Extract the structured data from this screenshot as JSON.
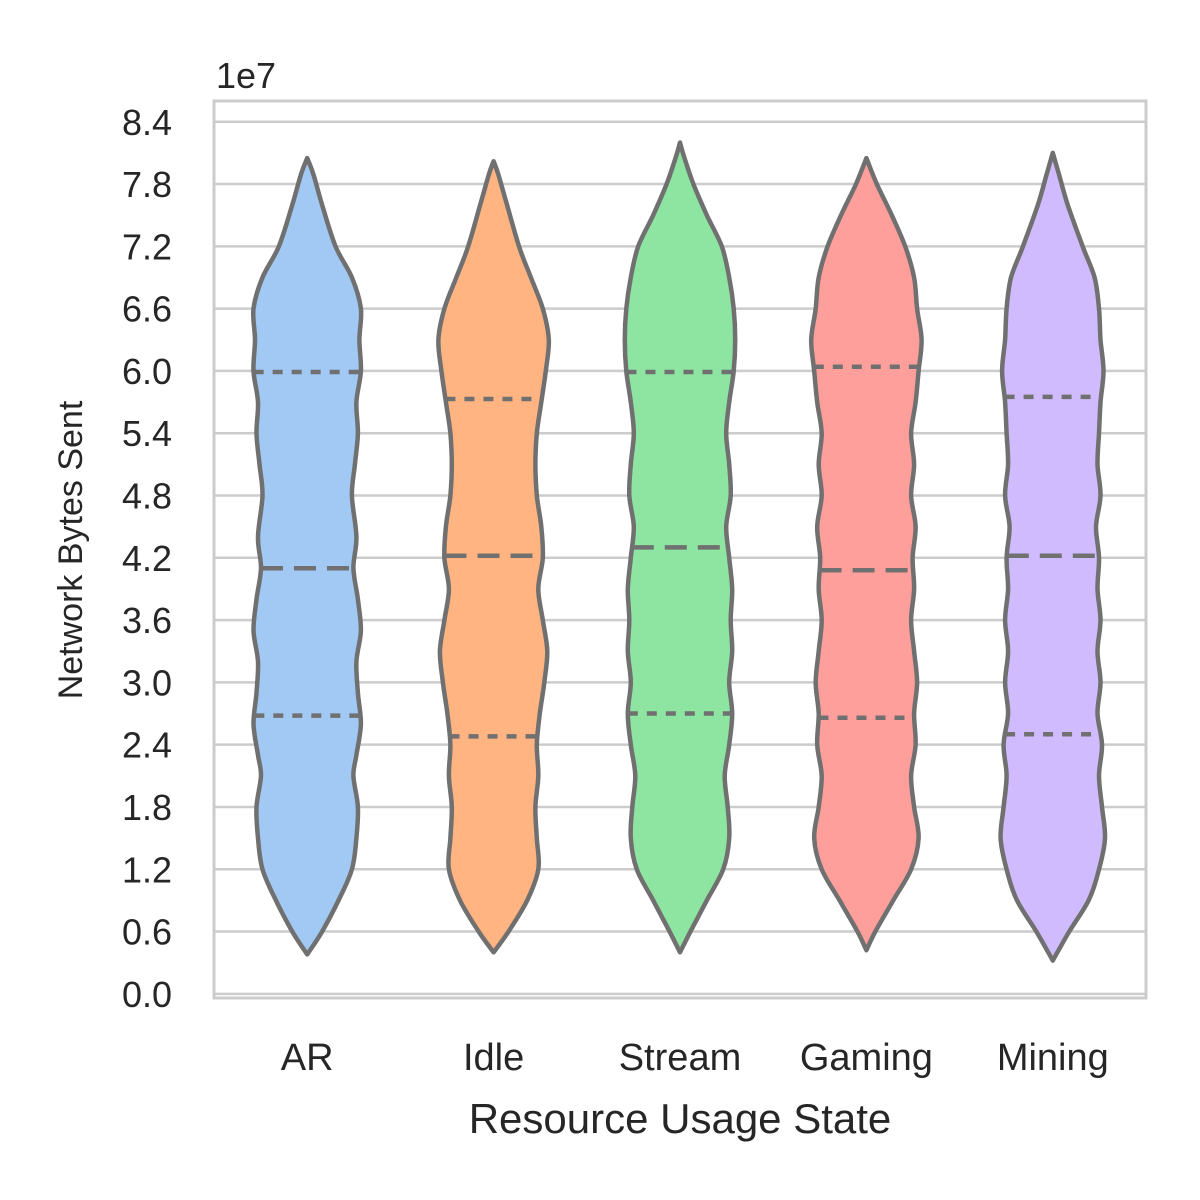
{
  "chart_data": {
    "type": "violin",
    "xlabel": "Resource Usage State",
    "ylabel": "Network Bytes Sent",
    "offset_label": "1e7",
    "y_scale_factor": 10000000,
    "ylim": [
      -0.04,
      8.6
    ],
    "yticks": [
      0.0,
      0.6,
      1.2,
      1.8,
      2.4,
      3.0,
      3.6,
      4.2,
      4.8,
      5.4,
      6.0,
      6.6,
      7.2,
      7.8,
      8.4
    ],
    "ytick_labels": [
      "0.0",
      "0.6",
      "1.2",
      "1.8",
      "2.4",
      "3.0",
      "3.6",
      "4.2",
      "4.8",
      "5.4",
      "6.0",
      "6.6",
      "7.2",
      "7.8",
      "8.4"
    ],
    "grid": "horizontal",
    "categories": [
      "AR",
      "Idle",
      "Stream",
      "Gaming",
      "Mining"
    ],
    "series": [
      {
        "category": "AR",
        "color": "#a1c9f4",
        "y_min": 0.38,
        "y_max": 8.05,
        "quartiles": [
          2.68,
          4.1,
          5.99
        ],
        "profile": [
          [
            0.38,
            0.0
          ],
          [
            0.6,
            0.2
          ],
          [
            0.9,
            0.42
          ],
          [
            1.2,
            0.6
          ],
          [
            1.5,
            0.66
          ],
          [
            1.8,
            0.68
          ],
          [
            2.1,
            0.62
          ],
          [
            2.3,
            0.66
          ],
          [
            2.6,
            0.72
          ],
          [
            2.9,
            0.68
          ],
          [
            3.2,
            0.66
          ],
          [
            3.5,
            0.72
          ],
          [
            3.8,
            0.68
          ],
          [
            4.1,
            0.62
          ],
          [
            4.4,
            0.66
          ],
          [
            4.8,
            0.6
          ],
          [
            5.1,
            0.64
          ],
          [
            5.4,
            0.68
          ],
          [
            5.7,
            0.66
          ],
          [
            6.0,
            0.72
          ],
          [
            6.3,
            0.7
          ],
          [
            6.6,
            0.72
          ],
          [
            6.9,
            0.6
          ],
          [
            7.2,
            0.38
          ],
          [
            7.6,
            0.2
          ],
          [
            7.9,
            0.08
          ],
          [
            8.05,
            0.0
          ]
        ]
      },
      {
        "category": "Idle",
        "color": "#ffb482",
        "y_min": 0.4,
        "y_max": 8.02,
        "quartiles": [
          2.48,
          4.22,
          5.73
        ],
        "profile": [
          [
            0.4,
            0.0
          ],
          [
            0.6,
            0.2
          ],
          [
            0.9,
            0.45
          ],
          [
            1.2,
            0.6
          ],
          [
            1.5,
            0.58
          ],
          [
            1.8,
            0.56
          ],
          [
            2.1,
            0.6
          ],
          [
            2.4,
            0.58
          ],
          [
            2.7,
            0.62
          ],
          [
            3.0,
            0.68
          ],
          [
            3.3,
            0.72
          ],
          [
            3.6,
            0.66
          ],
          [
            3.9,
            0.6
          ],
          [
            4.2,
            0.66
          ],
          [
            4.5,
            0.64
          ],
          [
            4.8,
            0.58
          ],
          [
            5.1,
            0.56
          ],
          [
            5.4,
            0.58
          ],
          [
            5.7,
            0.64
          ],
          [
            6.0,
            0.7
          ],
          [
            6.3,
            0.74
          ],
          [
            6.6,
            0.66
          ],
          [
            6.9,
            0.5
          ],
          [
            7.2,
            0.34
          ],
          [
            7.6,
            0.18
          ],
          [
            7.9,
            0.06
          ],
          [
            8.02,
            0.0
          ]
        ]
      },
      {
        "category": "Stream",
        "color": "#8de5a1",
        "y_min": 0.4,
        "y_max": 8.2,
        "quartiles": [
          2.7,
          4.3,
          5.99
        ],
        "profile": [
          [
            0.4,
            0.0
          ],
          [
            0.6,
            0.14
          ],
          [
            0.9,
            0.36
          ],
          [
            1.2,
            0.58
          ],
          [
            1.5,
            0.66
          ],
          [
            1.8,
            0.64
          ],
          [
            2.1,
            0.6
          ],
          [
            2.4,
            0.66
          ],
          [
            2.7,
            0.7
          ],
          [
            3.0,
            0.66
          ],
          [
            3.3,
            0.7
          ],
          [
            3.6,
            0.68
          ],
          [
            3.9,
            0.7
          ],
          [
            4.2,
            0.66
          ],
          [
            4.5,
            0.62
          ],
          [
            4.8,
            0.68
          ],
          [
            5.1,
            0.66
          ],
          [
            5.4,
            0.62
          ],
          [
            5.7,
            0.66
          ],
          [
            6.0,
            0.72
          ],
          [
            6.3,
            0.74
          ],
          [
            6.6,
            0.72
          ],
          [
            6.9,
            0.66
          ],
          [
            7.2,
            0.56
          ],
          [
            7.5,
            0.36
          ],
          [
            7.8,
            0.18
          ],
          [
            8.05,
            0.06
          ],
          [
            8.2,
            0.0
          ]
        ]
      },
      {
        "category": "Gaming",
        "color": "#ff9f9b",
        "y_min": 0.42,
        "y_max": 8.05,
        "quartiles": [
          2.66,
          4.08,
          6.04
        ],
        "profile": [
          [
            0.42,
            0.0
          ],
          [
            0.6,
            0.12
          ],
          [
            0.9,
            0.36
          ],
          [
            1.2,
            0.6
          ],
          [
            1.5,
            0.7
          ],
          [
            1.8,
            0.64
          ],
          [
            2.1,
            0.6
          ],
          [
            2.4,
            0.66
          ],
          [
            2.7,
            0.64
          ],
          [
            3.0,
            0.68
          ],
          [
            3.3,
            0.64
          ],
          [
            3.6,
            0.6
          ],
          [
            3.9,
            0.64
          ],
          [
            4.2,
            0.62
          ],
          [
            4.5,
            0.66
          ],
          [
            4.8,
            0.6
          ],
          [
            5.1,
            0.64
          ],
          [
            5.4,
            0.6
          ],
          [
            5.7,
            0.66
          ],
          [
            6.0,
            0.7
          ],
          [
            6.3,
            0.74
          ],
          [
            6.6,
            0.68
          ],
          [
            6.9,
            0.64
          ],
          [
            7.2,
            0.52
          ],
          [
            7.5,
            0.34
          ],
          [
            7.8,
            0.14
          ],
          [
            8.05,
            0.0
          ]
        ]
      },
      {
        "category": "Mining",
        "color": "#d0bbff",
        "y_min": 0.32,
        "y_max": 8.1,
        "quartiles": [
          2.5,
          4.22,
          5.75
        ],
        "profile": [
          [
            0.32,
            0.0
          ],
          [
            0.6,
            0.22
          ],
          [
            0.9,
            0.48
          ],
          [
            1.2,
            0.62
          ],
          [
            1.5,
            0.7
          ],
          [
            1.8,
            0.66
          ],
          [
            2.1,
            0.62
          ],
          [
            2.4,
            0.66
          ],
          [
            2.7,
            0.6
          ],
          [
            3.0,
            0.64
          ],
          [
            3.3,
            0.6
          ],
          [
            3.6,
            0.64
          ],
          [
            3.9,
            0.6
          ],
          [
            4.2,
            0.62
          ],
          [
            4.5,
            0.58
          ],
          [
            4.8,
            0.64
          ],
          [
            5.1,
            0.6
          ],
          [
            5.4,
            0.62
          ],
          [
            5.7,
            0.64
          ],
          [
            6.0,
            0.68
          ],
          [
            6.3,
            0.64
          ],
          [
            6.6,
            0.62
          ],
          [
            6.9,
            0.56
          ],
          [
            7.2,
            0.4
          ],
          [
            7.6,
            0.2
          ],
          [
            7.9,
            0.08
          ],
          [
            8.1,
            0.0
          ]
        ]
      }
    ]
  }
}
